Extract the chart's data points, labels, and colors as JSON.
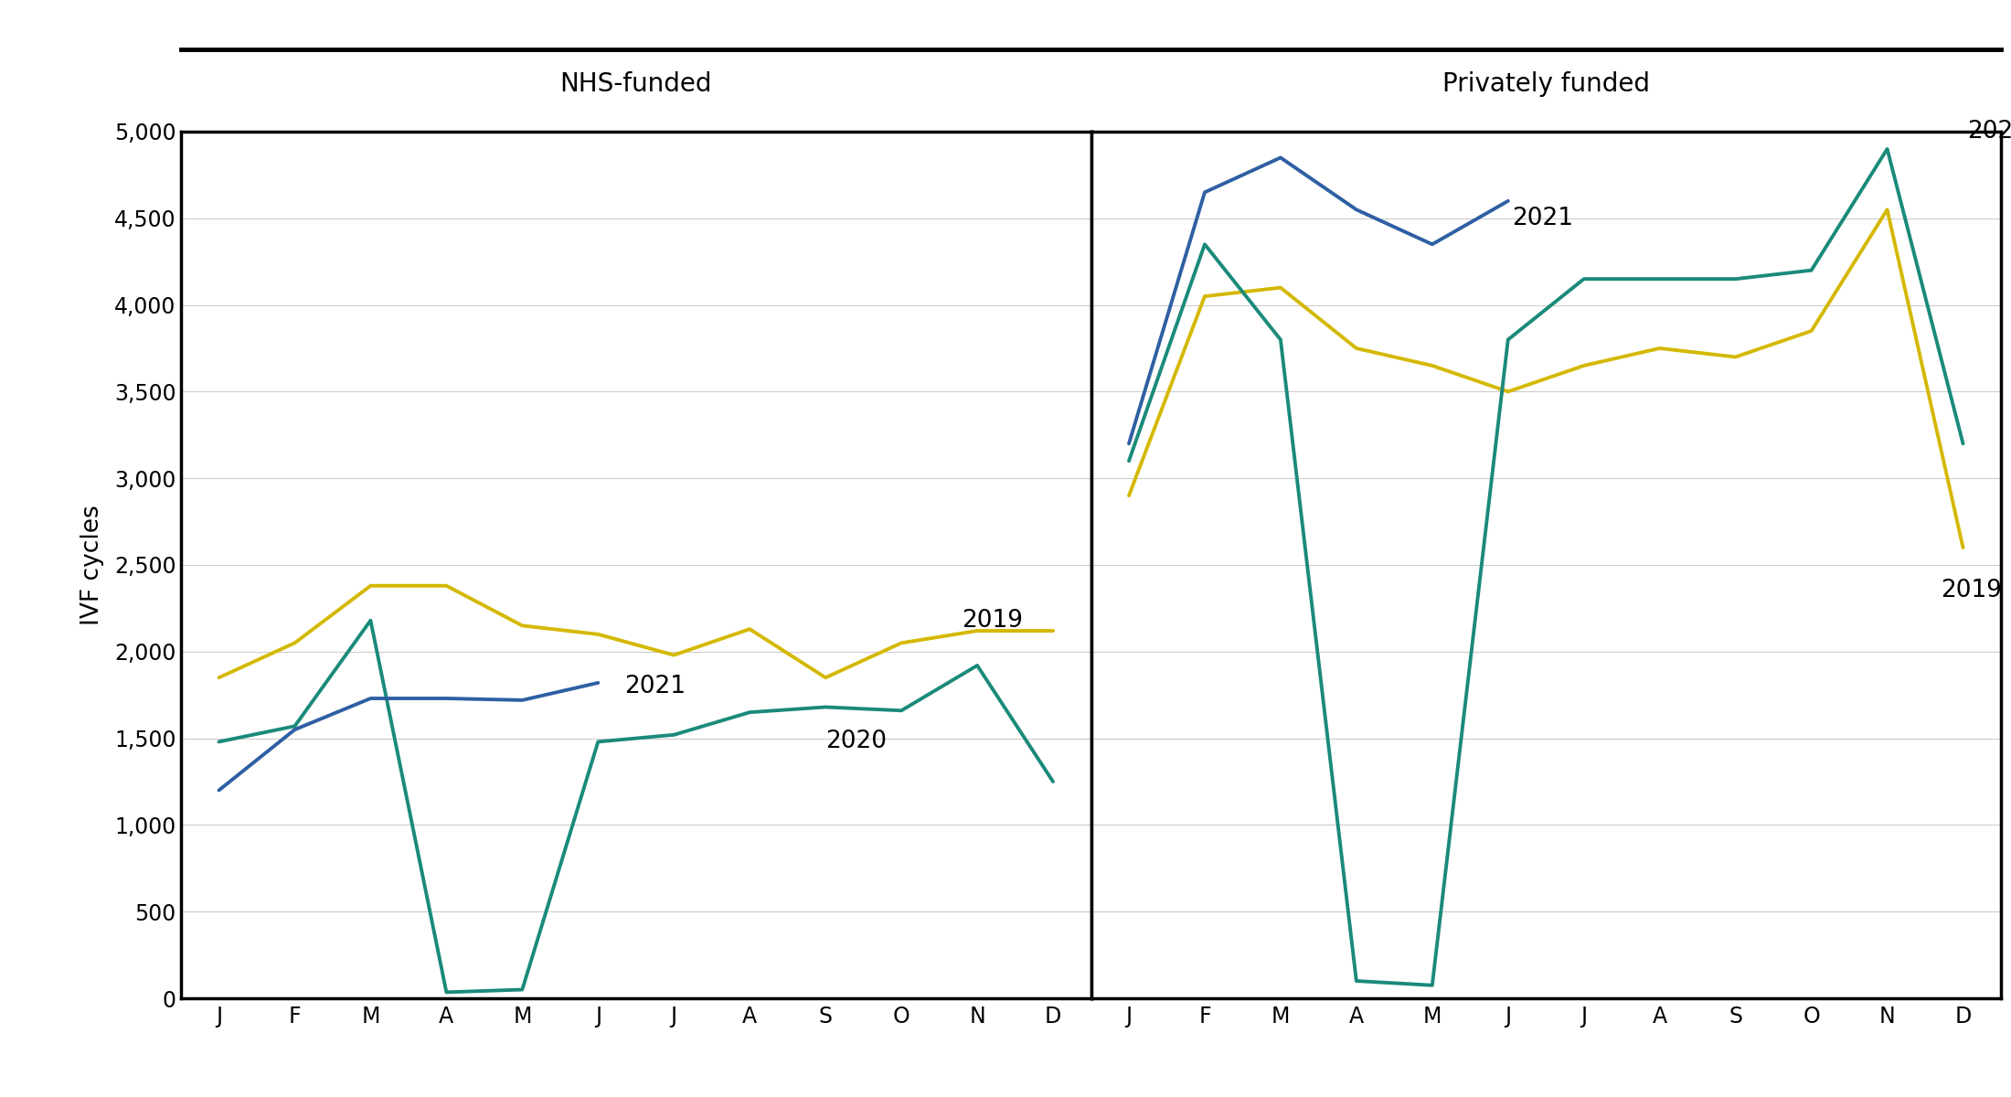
{
  "nhs_2019": [
    1850,
    2050,
    2380,
    2380,
    2150,
    2100,
    1980,
    2130,
    1850,
    2050,
    2120,
    2120
  ],
  "nhs_2020": [
    1480,
    1570,
    2180,
    35,
    50,
    1480,
    1520,
    1650,
    1680,
    1660,
    1920,
    1250
  ],
  "nhs_2021": [
    1200,
    1550,
    1730,
    1730,
    1720,
    1820
  ],
  "priv_2019": [
    2900,
    4050,
    4100,
    3750,
    3650,
    3500,
    3650,
    3750,
    3700,
    3850,
    4550,
    2600
  ],
  "priv_2020": [
    3100,
    4350,
    3800,
    100,
    75,
    3800,
    4150,
    4150,
    4150,
    4200,
    4900,
    3200
  ],
  "priv_2021": [
    3200,
    4650,
    4850,
    4550,
    4350,
    4600
  ],
  "months_full": [
    "J",
    "F",
    "M",
    "A",
    "M",
    "J",
    "J",
    "A",
    "S",
    "O",
    "N",
    "D"
  ],
  "color_2019": "#d4b800",
  "color_2020": "#1a8a7a",
  "color_2021": "#2e5fa3",
  "ylabel": "IVF cycles",
  "title_nhs": "NHS-funded",
  "title_priv": "Privately funded",
  "ylim": [
    0,
    5000
  ],
  "yticks": [
    0,
    500,
    1000,
    1500,
    2000,
    2500,
    3000,
    3500,
    4000,
    4500,
    5000
  ],
  "line_width": 2.8,
  "label_fontsize": 19,
  "tick_fontsize": 17,
  "title_fontsize": 20,
  "annotation_fontsize": 19
}
